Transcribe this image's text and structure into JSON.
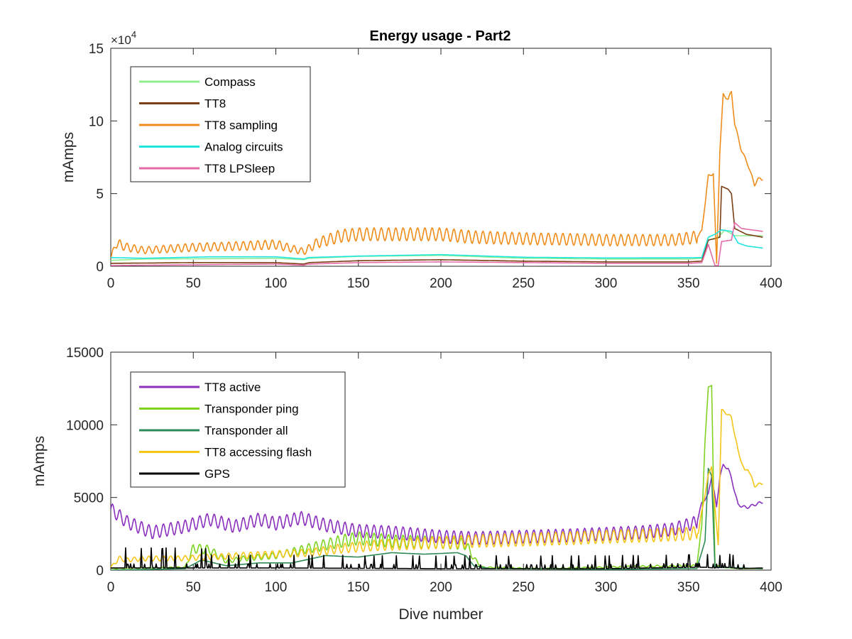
{
  "figure": {
    "title": "Energy usage - Part2"
  },
  "chart_data": [
    {
      "type": "line",
      "title": "Energy usage - Part2",
      "xlabel": "",
      "ylabel": "mAmps",
      "xlim": [
        0,
        400
      ],
      "ylim": [
        0,
        150000
      ],
      "xticks": [
        "0",
        "50",
        "100",
        "150",
        "200",
        "250",
        "300",
        "350",
        "400"
      ],
      "yticks": [
        "0",
        "5",
        "10",
        "15"
      ],
      "y_exponent_label": "×10",
      "y_exponent_power": "4",
      "grid": false,
      "legend_position": "top-left",
      "series": [
        {
          "name": "Compass",
          "color": "#90ee90",
          "points": [
            [
              0,
              4000
            ],
            [
              20,
              5000
            ],
            [
              60,
              5200
            ],
            [
              100,
              5500
            ],
            [
              117,
              4500
            ],
            [
              120,
              5500
            ],
            [
              150,
              6800
            ],
            [
              200,
              7500
            ],
            [
              250,
              5500
            ],
            [
              300,
              5000
            ],
            [
              350,
              5000
            ],
            [
              358,
              5500
            ],
            [
              362,
              18000
            ],
            [
              368,
              20000
            ],
            [
              372,
              25000
            ],
            [
              378,
              21000
            ],
            [
              385,
              21000
            ],
            [
              395,
              21000
            ]
          ]
        },
        {
          "name": "TT8",
          "color": "#7b3f13",
          "points": [
            [
              0,
              2000
            ],
            [
              50,
              2500
            ],
            [
              100,
              2500
            ],
            [
              117,
              1500
            ],
            [
              120,
              2500
            ],
            [
              150,
              3800
            ],
            [
              200,
              4500
            ],
            [
              250,
              3500
            ],
            [
              300,
              3000
            ],
            [
              350,
              3000
            ],
            [
              358,
              3500
            ],
            [
              362,
              18000
            ],
            [
              366,
              19000
            ],
            [
              369,
              20000
            ],
            [
              370,
              55000
            ],
            [
              374,
              53000
            ],
            [
              376,
              50000
            ],
            [
              378,
              26000
            ],
            [
              385,
              22000
            ],
            [
              395,
              20000
            ]
          ]
        },
        {
          "name": "TT8 sampling",
          "color": "#f08c1a",
          "mode": "oscillate",
          "points": [
            [
              0,
              5000
            ],
            [
              3,
              16000
            ],
            [
              10,
              13000
            ],
            [
              20,
              11000
            ],
            [
              50,
              13000
            ],
            [
              80,
              14000
            ],
            [
              100,
              15000
            ],
            [
              117,
              10000
            ],
            [
              125,
              16000
            ],
            [
              140,
              21000
            ],
            [
              150,
              22000
            ],
            [
              165,
              22000
            ],
            [
              180,
              22000
            ],
            [
              200,
              22000
            ],
            [
              220,
              20000
            ],
            [
              250,
              19000
            ],
            [
              280,
              18500
            ],
            [
              300,
              18000
            ],
            [
              320,
              18000
            ],
            [
              340,
              18000
            ],
            [
              355,
              20000
            ],
            [
              358,
              24000
            ],
            [
              362,
              62000
            ],
            [
              365,
              64000
            ],
            [
              367,
              2000
            ],
            [
              369,
              80000
            ],
            [
              371,
              118000
            ],
            [
              374,
              115000
            ],
            [
              376,
              120000
            ],
            [
              378,
              98000
            ],
            [
              382,
              80000
            ],
            [
              386,
              70000
            ],
            [
              388,
              63000
            ],
            [
              390,
              56000
            ],
            [
              392,
              60000
            ],
            [
              395,
              60000
            ]
          ]
        },
        {
          "name": "Analog circuits",
          "color": "#1fe5e0",
          "points": [
            [
              0,
              6000
            ],
            [
              20,
              5500
            ],
            [
              60,
              6500
            ],
            [
              100,
              6500
            ],
            [
              117,
              5000
            ],
            [
              120,
              6000
            ],
            [
              150,
              7000
            ],
            [
              200,
              8000
            ],
            [
              250,
              6200
            ],
            [
              300,
              5700
            ],
            [
              350,
              5800
            ],
            [
              358,
              6000
            ],
            [
              362,
              20000
            ],
            [
              366,
              22000
            ],
            [
              370,
              25000
            ],
            [
              376,
              24000
            ],
            [
              380,
              16000
            ],
            [
              385,
              14000
            ],
            [
              395,
              12500
            ]
          ]
        },
        {
          "name": "TT8 LPSleep",
          "color": "#e46aa8",
          "points": [
            [
              0,
              500
            ],
            [
              50,
              1000
            ],
            [
              100,
              1500
            ],
            [
              117,
              800
            ],
            [
              120,
              1500
            ],
            [
              150,
              2500
            ],
            [
              200,
              3000
            ],
            [
              250,
              2500
            ],
            [
              300,
              2000
            ],
            [
              350,
              2000
            ],
            [
              358,
              2500
            ],
            [
              362,
              15000
            ],
            [
              366,
              500
            ],
            [
              368,
              500
            ],
            [
              370,
              17000
            ],
            [
              376,
              18000
            ],
            [
              378,
              30000
            ],
            [
              382,
              26000
            ],
            [
              395,
              24000
            ]
          ]
        }
      ]
    },
    {
      "type": "line",
      "title": "",
      "xlabel": "Dive number",
      "ylabel": "mAmps",
      "xlim": [
        0,
        400
      ],
      "ylim": [
        0,
        15000
      ],
      "xticks": [
        "0",
        "50",
        "100",
        "150",
        "200",
        "250",
        "300",
        "350",
        "400"
      ],
      "yticks": [
        "0",
        "5000",
        "10000",
        "15000"
      ],
      "grid": false,
      "legend_position": "top-left",
      "series": [
        {
          "name": "TT8 active",
          "color": "#8a2fbe",
          "mode": "oscillate",
          "points": [
            [
              0,
              4200
            ],
            [
              10,
              3300
            ],
            [
              25,
              2600
            ],
            [
              45,
              3000
            ],
            [
              60,
              3500
            ],
            [
              75,
              3000
            ],
            [
              90,
              3500
            ],
            [
              100,
              3200
            ],
            [
              115,
              3600
            ],
            [
              130,
              3100
            ],
            [
              150,
              2700
            ],
            [
              170,
              2600
            ],
            [
              200,
              2300
            ],
            [
              220,
              2200
            ],
            [
              250,
              2300
            ],
            [
              280,
              2400
            ],
            [
              300,
              2500
            ],
            [
              320,
              2600
            ],
            [
              340,
              2800
            ],
            [
              355,
              3300
            ],
            [
              358,
              4600
            ],
            [
              362,
              5200
            ],
            [
              364,
              6500
            ],
            [
              367,
              4300
            ],
            [
              369,
              6500
            ],
            [
              371,
              7200
            ],
            [
              374,
              7000
            ],
            [
              376,
              6300
            ],
            [
              380,
              4500
            ],
            [
              385,
              4300
            ],
            [
              390,
              4500
            ],
            [
              395,
              4700
            ]
          ]
        },
        {
          "name": "Transponder ping",
          "color": "#7ed321",
          "mode": "oscillate",
          "points": [
            [
              0,
              100
            ],
            [
              45,
              200
            ],
            [
              50,
              1500
            ],
            [
              60,
              1400
            ],
            [
              70,
              600
            ],
            [
              80,
              800
            ],
            [
              100,
              1000
            ],
            [
              120,
              1500
            ],
            [
              140,
              2000
            ],
            [
              150,
              2200
            ],
            [
              170,
              2000
            ],
            [
              200,
              1900
            ],
            [
              215,
              1800
            ],
            [
              220,
              800
            ],
            [
              225,
              200
            ],
            [
              260,
              100
            ],
            [
              300,
              200
            ],
            [
              340,
              300
            ],
            [
              355,
              300
            ],
            [
              358,
              3000
            ],
            [
              360,
              9000
            ],
            [
              362,
              12500
            ],
            [
              364,
              12800
            ],
            [
              366,
              400
            ],
            [
              370,
              200
            ],
            [
              380,
              100
            ],
            [
              395,
              100
            ]
          ]
        },
        {
          "name": "Transponder all",
          "color": "#2e8b57",
          "points": [
            [
              0,
              0
            ],
            [
              45,
              100
            ],
            [
              55,
              700
            ],
            [
              70,
              300
            ],
            [
              90,
              500
            ],
            [
              110,
              500
            ],
            [
              130,
              1000
            ],
            [
              150,
              900
            ],
            [
              170,
              1200
            ],
            [
              190,
              1100
            ],
            [
              210,
              1200
            ],
            [
              215,
              1000
            ],
            [
              220,
              300
            ],
            [
              230,
              100
            ],
            [
              300,
              50
            ],
            [
              355,
              100
            ],
            [
              360,
              2000
            ],
            [
              362,
              7000
            ],
            [
              364,
              6500
            ],
            [
              366,
              200
            ],
            [
              395,
              100
            ]
          ]
        },
        {
          "name": "TT8 accessing flash",
          "color": "#f5c518",
          "mode": "oscillate",
          "points": [
            [
              0,
              200
            ],
            [
              5,
              800
            ],
            [
              10,
              700
            ],
            [
              20,
              800
            ],
            [
              40,
              800
            ],
            [
              60,
              900
            ],
            [
              80,
              1000
            ],
            [
              100,
              1100
            ],
            [
              120,
              1200
            ],
            [
              140,
              1500
            ],
            [
              160,
              1700
            ],
            [
              180,
              1800
            ],
            [
              200,
              1900
            ],
            [
              220,
              2000
            ],
            [
              250,
              2100
            ],
            [
              280,
              2200
            ],
            [
              300,
              2300
            ],
            [
              330,
              2400
            ],
            [
              350,
              2500
            ],
            [
              356,
              2600
            ],
            [
              358,
              4000
            ],
            [
              362,
              6500
            ],
            [
              364,
              7200
            ],
            [
              366,
              4200
            ],
            [
              368,
              1800
            ],
            [
              370,
              11000
            ],
            [
              373,
              10800
            ],
            [
              376,
              10500
            ],
            [
              380,
              8200
            ],
            [
              384,
              6800
            ],
            [
              386,
              7000
            ],
            [
              390,
              5800
            ],
            [
              395,
              6000
            ]
          ]
        },
        {
          "name": "GPS",
          "color": "#000000",
          "mode": "spikes",
          "points": [
            [
              0,
              150
            ],
            [
              100,
              150
            ],
            [
              200,
              100
            ],
            [
              300,
              100
            ],
            [
              355,
              200
            ],
            [
              360,
              200
            ],
            [
              365,
              150
            ],
            [
              375,
              200
            ],
            [
              380,
              100
            ],
            [
              395,
              150
            ]
          ]
        }
      ]
    }
  ]
}
